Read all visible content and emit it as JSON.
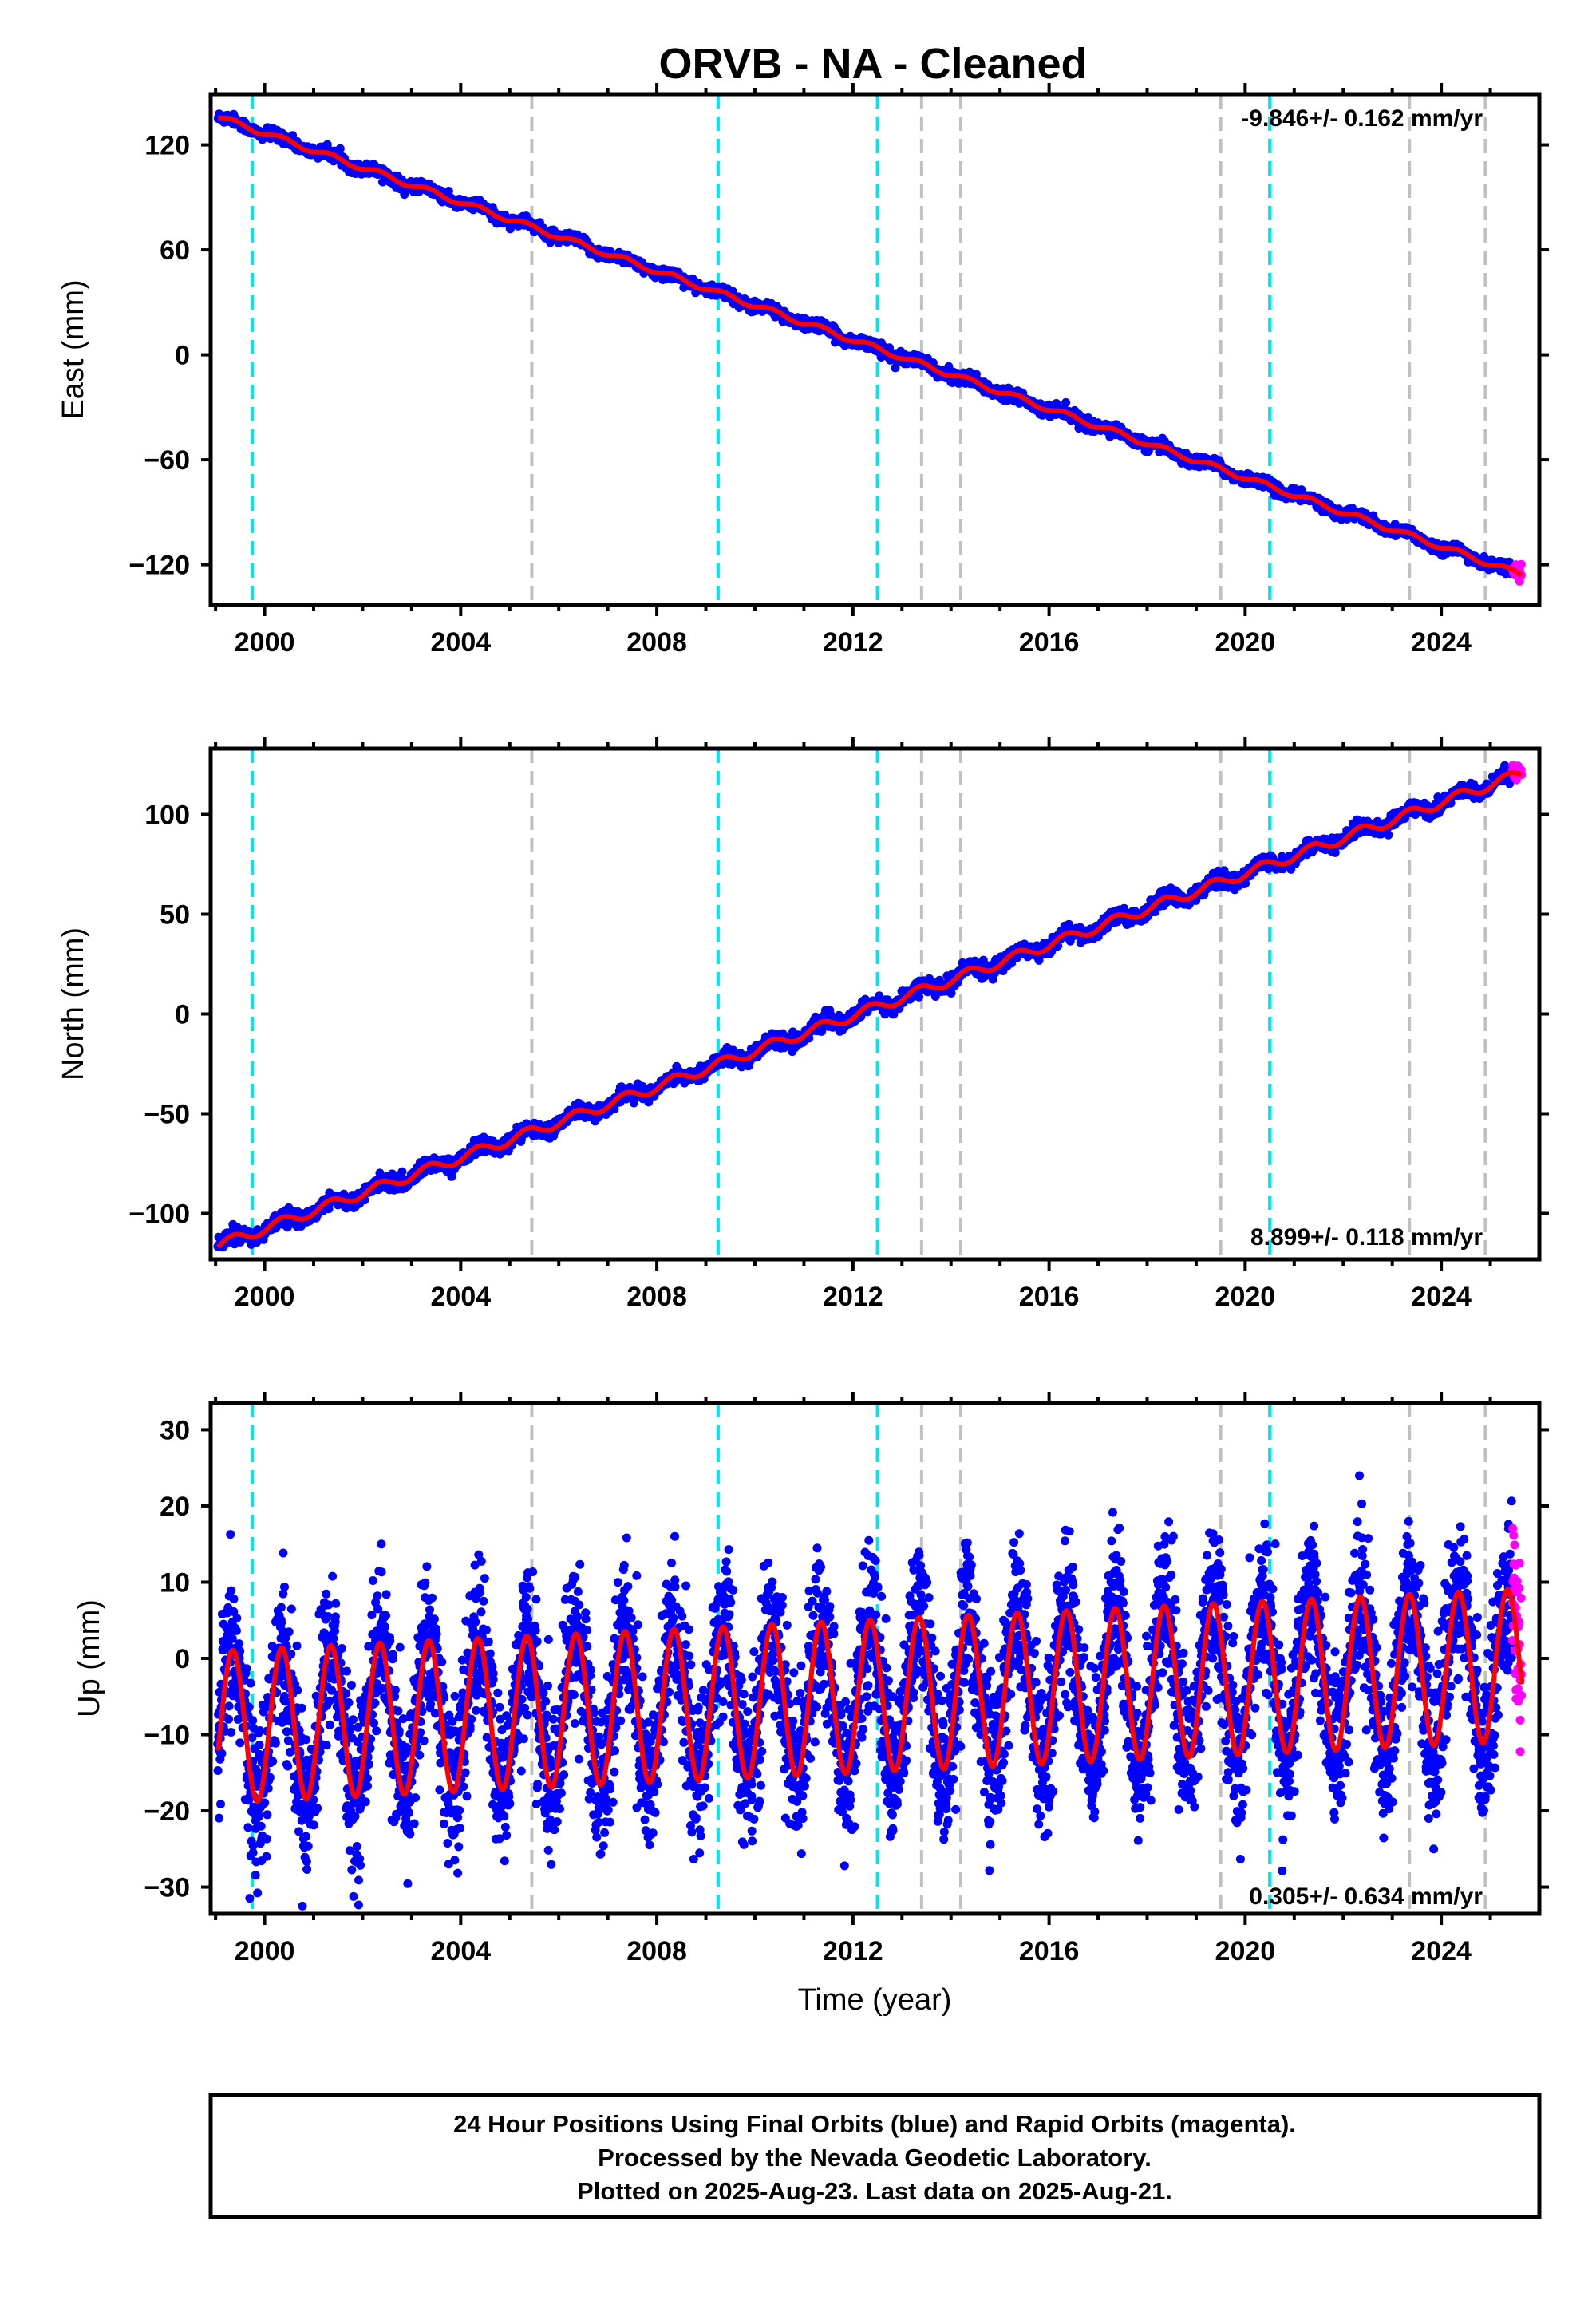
{
  "title": "ORVB  - NA - Cleaned",
  "colors": {
    "final": "#0000ff",
    "rapid": "#ff00ff",
    "model": "#ff0000",
    "event_cyan": "#00e5ee",
    "event_gray": "#c0c0c0"
  },
  "chart_data": [
    {
      "type": "scatter",
      "id": "east",
      "ylabel": "East (mm)",
      "rate": "-9.846+/- 0.162 mm/yr",
      "xlim": [
        1998.9,
        2026.0
      ],
      "ylim": [
        -143,
        149
      ],
      "yticks": [
        120,
        60,
        0,
        -60,
        -120
      ],
      "xticks": [
        2000,
        2004,
        2008,
        2012,
        2016,
        2020,
        2024
      ],
      "start": {
        "year": 1999.05,
        "value": 136
      },
      "slope": -9.846,
      "annual_amplitude": 1.5,
      "noise": 1.6,
      "last_final_year": 2025.45,
      "last_year": 2025.64
    },
    {
      "type": "scatter",
      "id": "north",
      "ylabel": "North (mm)",
      "rate": "8.899+/- 0.118 mm/yr",
      "xlim": [
        1998.9,
        2026.0
      ],
      "ylim": [
        -123,
        133
      ],
      "yticks": [
        100,
        50,
        0,
        -50,
        -100
      ],
      "xticks": [
        2000,
        2004,
        2008,
        2012,
        2016,
        2020,
        2024
      ],
      "start": {
        "year": 1999.05,
        "value": -116
      },
      "slope": 8.899,
      "annual_amplitude": 2.5,
      "noise": 1.8,
      "last_final_year": 2025.45,
      "last_year": 2025.64
    },
    {
      "type": "scatter",
      "id": "up",
      "ylabel": "Up (mm)",
      "xlabel": "Time (year)",
      "rate": "0.305+/- 0.634 mm/yr",
      "xlim": [
        1998.9,
        2026.0
      ],
      "ylim": [
        -33.5,
        33.5
      ],
      "yticks": [
        30,
        20,
        10,
        0,
        -10,
        -20,
        -30
      ],
      "xticks": [
        2000,
        2004,
        2008,
        2012,
        2016,
        2020,
        2024
      ],
      "start": {
        "year": 1999.05,
        "value": -9
      },
      "slope": 0.305,
      "annual_amplitude": 10,
      "noise": 5,
      "last_final_year": 2025.45,
      "last_year": 2025.64
    }
  ],
  "event_lines": {
    "cyan": [
      1999.75,
      2009.25,
      2012.5,
      2020.5
    ],
    "gray": [
      2005.45,
      2013.4,
      2014.2,
      2019.5,
      2023.35,
      2024.9
    ]
  },
  "footer": {
    "line1": "24 Hour Positions Using Final Orbits (blue) and Rapid Orbits (magenta).",
    "line2": "Processed by the Nevada Geodetic Laboratory.",
    "line3": "Plotted on 2025-Aug-23. Last data on 2025-Aug-21."
  }
}
